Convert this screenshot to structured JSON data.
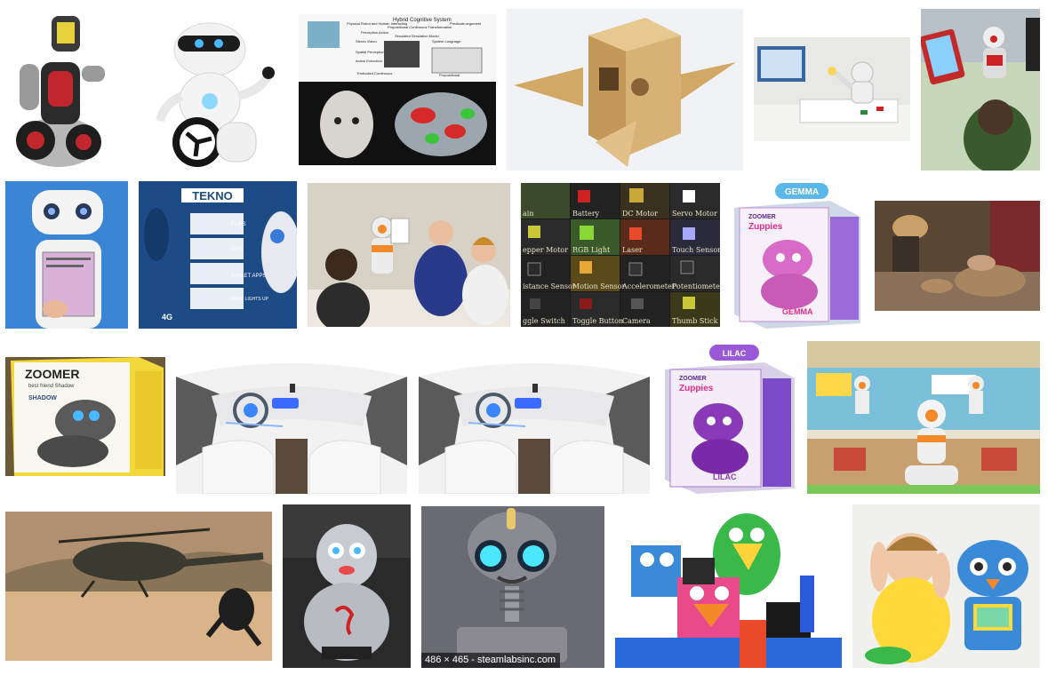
{
  "results": [
    {
      "name": "red-robot-segway"
    },
    {
      "name": "white-robot-wheel"
    },
    {
      "name": "hybrid-cognitive-system",
      "labels": {
        "title": "Hybrid Cognitive System",
        "l1": "Physical Robot and Human Interacting",
        "l2": "Propositional Continuous Transformation",
        "l3": "Predicate-argument",
        "l4": "Perception Action",
        "l5": "Simulated Simulation Model",
        "l6": "Stereo Vision",
        "l7": "System Language",
        "l8": "Spatial Perception",
        "l9": "Action Execution",
        "l10": "Embodied Continuous",
        "l11": "Propositional"
      }
    },
    {
      "name": "wooden-box-robot"
    },
    {
      "name": "nao-robot-office"
    },
    {
      "name": "nao-tablet-kid"
    },
    {
      "name": "tablet-face-robot"
    },
    {
      "name": "tekno-box",
      "labels": {
        "brand": "TEKNO",
        "f1": "FLIPS",
        "f2": "SITS",
        "f3": "TABLET APPS",
        "f4": "BONE LIGHTS UP",
        "f5": "4G"
      }
    },
    {
      "name": "nao-children-classroom"
    },
    {
      "name": "sensor-grid",
      "labels": {
        "c1": "ain",
        "c2": "Battery",
        "c3": "DC Motor",
        "c4": "Servo Motor",
        "c5": "epper Motor",
        "c6": "RGB Light",
        "c7": "Laser",
        "c8": "Touch Sensor",
        "c9": "istance Sensor",
        "c10": "Motion Sensor",
        "c11": "Accelerometer",
        "c12": "Potentiometer",
        "c13": "ggle Switch",
        "c14": "Toggle Button",
        "c15": "Camera",
        "c16": "Thumb Stick"
      }
    },
    {
      "name": "gemma-zuppies",
      "labels": {
        "tag": "GEMMA",
        "brand": "ZOOMER",
        "line": "Zuppies",
        "name": "GEMMA"
      }
    },
    {
      "name": "hands-workshop"
    },
    {
      "name": "zoomer-shadow",
      "labels": {
        "brand": "ZOOMER",
        "line": "best friend Shadow",
        "name": "SHADOW"
      }
    },
    {
      "name": "car-interior-1"
    },
    {
      "name": "car-interior-2"
    },
    {
      "name": "lilac-zuppies",
      "labels": {
        "tag": "LILAC",
        "brand": "ZOOMER",
        "line": "Zuppies",
        "name": "LILAC"
      }
    },
    {
      "name": "nao-robots-classroom"
    },
    {
      "name": "helicopter-runner"
    },
    {
      "name": "silver-robot"
    },
    {
      "name": "steamlabs-robot",
      "caption": "486 × 465 - steamlabsinc.com"
    },
    {
      "name": "paper-bird-robots"
    },
    {
      "name": "boy-toy-robot"
    }
  ],
  "colors": {
    "page_bg": "#ffffff",
    "caption_bg": "#000000"
  }
}
